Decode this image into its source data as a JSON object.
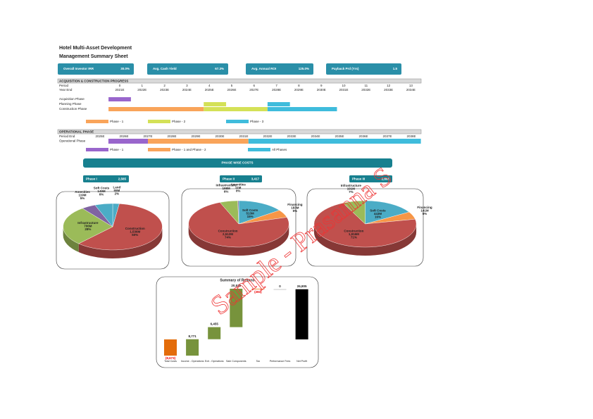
{
  "header": {
    "title": "Hotel Multi-Asset Development",
    "subtitle": "Management Summary Sheet"
  },
  "kpis": [
    {
      "label": "Overall Investor IRR",
      "value": "30.0%"
    },
    {
      "label": "Avg. Cash Yield",
      "value": "67.3%"
    },
    {
      "label": "Avg. Annual ROI",
      "value": "125.0%"
    },
    {
      "label": "Payback Prd (Yrs)",
      "value": "1.5"
    }
  ],
  "acquisition": {
    "header": "ACQUISITION & CONSTRUCTION PROGRESS",
    "period_label": "Period",
    "periods": [
      0,
      1,
      2,
      3,
      4,
      5,
      6,
      7,
      8,
      9,
      10,
      11,
      12,
      13
    ],
    "year_label": "Year End",
    "years": [
      "2021E",
      "2022E",
      "2023E",
      "2024E",
      "2025E",
      "2026E",
      "2027E",
      "2028E",
      "2029E",
      "2030E",
      "2031E",
      "2032E",
      "2033E",
      "2034E"
    ],
    "rows": [
      {
        "name": "Acquisition Phase",
        "bars": [
          {
            "start": -0.5,
            "end": 0.5,
            "color": "#9966cc"
          }
        ]
      },
      {
        "name": "Planning Phase",
        "bars": [
          {
            "start": 3.75,
            "end": 4.75,
            "color": "#d4e157"
          },
          {
            "start": 6.6,
            "end": 7.6,
            "color": "#3fbcdc"
          }
        ]
      },
      {
        "name": "Construction Phase",
        "bars": [
          {
            "start": -0.5,
            "end": 3.75,
            "color": "#f9a45a"
          },
          {
            "start": 3.75,
            "end": 6.6,
            "color": "#d4e157"
          },
          {
            "start": 6.6,
            "end": 9.7,
            "color": "#3fbcdc"
          }
        ]
      }
    ],
    "legend": [
      {
        "label": "Phase - 1",
        "color": "#f9a45a"
      },
      {
        "label": "Phase - 2",
        "color": "#d4e157"
      },
      {
        "label": "Phase - 3",
        "color": "#3fbcdc"
      }
    ]
  },
  "operational": {
    "header": "OPERATIONAL PHASE",
    "period_label": "Period End",
    "years": [
      "2025E",
      "2026E",
      "2027E",
      "2028E",
      "2029E",
      "2030E",
      "2031E",
      "2032E",
      "2033E",
      "2034E",
      "2035E",
      "2036E",
      "2037E",
      "2038E"
    ],
    "row": "Operational Phase",
    "bars": [
      {
        "start": 0.35,
        "end": 2,
        "color": "#9966cc"
      },
      {
        "start": 2,
        "end": 6.2,
        "color": "#f9a45a"
      },
      {
        "start": 6.2,
        "end": 13.4,
        "color": "#3fbcdc"
      }
    ],
    "legend": [
      {
        "label": "Phase - 1",
        "color": "#9966cc"
      },
      {
        "label": "Phase - 1 and Phase - 2",
        "color": "#f9a45a"
      },
      {
        "label": "All Phases",
        "color": "#3fbcdc"
      }
    ]
  },
  "phase_costs": {
    "title": "PHASE WISE COSTS",
    "phases": [
      {
        "name": "Phase I",
        "total": "2,565"
      },
      {
        "name": "Phase II",
        "total": "3,417"
      },
      {
        "name": "Phase III",
        "total": "2,691"
      }
    ]
  },
  "chart_data": [
    {
      "type": "pie",
      "categories": [
        "Land",
        "Construction",
        "Infrastructure",
        "Amenities",
        "Soft Costs"
      ],
      "values": [
        55,
        1536,
        706,
        119,
        149
      ],
      "value_labels": [
        "55M",
        "1,536M",
        "706M",
        "119M",
        "149M"
      ],
      "percent_labels": [
        "2%",
        "60%",
        "28%",
        "5%",
        "6%"
      ],
      "colors": [
        "#4bacc6",
        "#c0504d",
        "#9bbb59",
        "#8064a2",
        "#4bacc6"
      ]
    },
    {
      "type": "pie",
      "categories": [
        "Soft Costs",
        "Financing",
        "Construction",
        "Infrastructure",
        "Amenities"
      ],
      "values": [
        513,
        183,
        2512,
        198,
        11
      ],
      "value_labels": [
        "513M",
        "183M",
        "2,512M",
        "198M",
        "11M"
      ],
      "percent_labels": [
        "15%",
        "5%",
        "74%",
        "6%",
        "0%"
      ],
      "colors": [
        "#4bacc6",
        "#f79646",
        "#c0504d",
        "#9bbb59",
        "#8064a2"
      ]
    },
    {
      "type": "pie",
      "categories": [
        "Soft Costs",
        "Financing",
        "Construction",
        "Infrastructure"
      ],
      "values": [
        443,
        141,
        1916,
        191
      ],
      "value_labels": [
        "443M",
        "141M",
        "1,916M",
        "191M"
      ],
      "percent_labels": [
        "16%",
        "5%",
        "71%",
        "7%"
      ],
      "colors": [
        "#4bacc6",
        "#f79646",
        "#c0504d",
        "#9bbb59"
      ]
    },
    {
      "type": "waterfall",
      "title": "Summary of Returns",
      "categories": [
        "Total Costs",
        "Income - Operations",
        "Exit - Operations",
        "Sale Components",
        "Tax",
        "Performance Fees",
        "Net Profit"
      ],
      "values": [
        -8673,
        8771,
        6455,
        20535,
        -283,
        0,
        26805
      ],
      "value_labels": [
        "(8,673)",
        "8,771",
        "6,455",
        "20,535",
        "(283)",
        "0",
        "26,805"
      ],
      "colors": [
        "#e36c0a",
        "#77933c",
        "#77933c",
        "#77933c",
        "#e36c0a",
        "#a6a6a6",
        "#000000"
      ]
    }
  ],
  "watermark": "Sample - Prasanna S"
}
